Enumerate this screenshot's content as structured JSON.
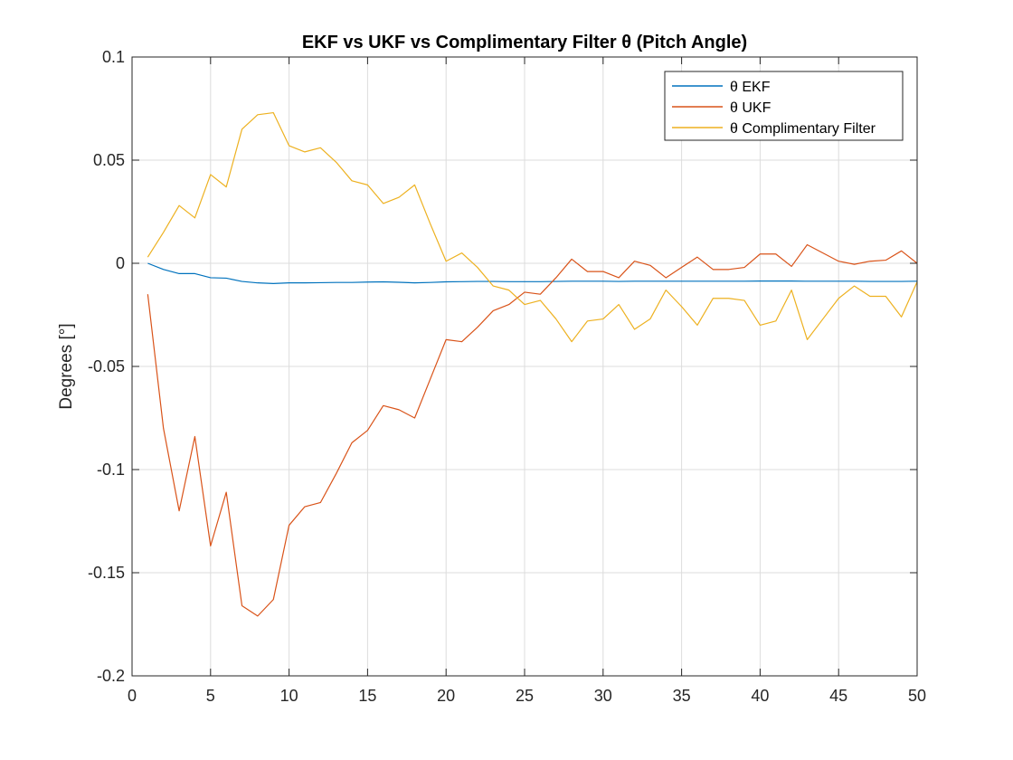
{
  "chart_data": {
    "type": "line",
    "title": "EKF vs UKF vs Complimentary Filter θ (Pitch Angle)",
    "xlabel": "",
    "ylabel": "Degrees [°]",
    "xlim": [
      0,
      50
    ],
    "ylim": [
      -0.2,
      0.1
    ],
    "x_ticks": [
      "0",
      "5",
      "10",
      "15",
      "20",
      "25",
      "30",
      "35",
      "40",
      "45",
      "50"
    ],
    "y_ticks": [
      "0.1",
      "0.05",
      "0",
      "-0.05",
      "-0.1",
      "-0.15",
      "-0.2"
    ],
    "grid": true,
    "legend_position": "top-right",
    "x": [
      1,
      2,
      3,
      4,
      5,
      6,
      7,
      8,
      9,
      10,
      11,
      12,
      13,
      14,
      15,
      16,
      17,
      18,
      19,
      20,
      21,
      22,
      23,
      24,
      25,
      26,
      27,
      28,
      29,
      30,
      31,
      32,
      33,
      34,
      35,
      36,
      37,
      38,
      39,
      40,
      41,
      42,
      43,
      44,
      45,
      46,
      47,
      48,
      49,
      50
    ],
    "series": [
      {
        "name": "θ EKF",
        "color": "#0072BD",
        "values": [
          0,
          -0.003,
          -0.005,
          -0.005,
          -0.007,
          -0.0072,
          -0.0088,
          -0.0095,
          -0.0098,
          -0.0095,
          -0.0095,
          -0.0094,
          -0.0093,
          -0.0093,
          -0.0091,
          -0.009,
          -0.0092,
          -0.0095,
          -0.0093,
          -0.009,
          -0.0089,
          -0.0088,
          -0.0088,
          -0.0089,
          -0.0089,
          -0.0089,
          -0.0088,
          -0.0087,
          -0.0087,
          -0.0087,
          -0.0088,
          -0.0087,
          -0.0087,
          -0.0087,
          -0.0087,
          -0.0087,
          -0.0087,
          -0.0087,
          -0.0087,
          -0.0086,
          -0.0086,
          -0.0086,
          -0.0087,
          -0.0087,
          -0.0087,
          -0.0087,
          -0.0088,
          -0.0088,
          -0.0088,
          -0.0087
        ]
      },
      {
        "name": "θ UKF",
        "color": "#D95319",
        "values": [
          -0.015,
          -0.08,
          -0.12,
          -0.084,
          -0.137,
          -0.111,
          -0.166,
          -0.171,
          -0.163,
          -0.127,
          -0.118,
          -0.116,
          -0.102,
          -0.087,
          -0.081,
          -0.069,
          -0.071,
          -0.075,
          -0.056,
          -0.037,
          -0.038,
          -0.031,
          -0.023,
          -0.02,
          -0.014,
          -0.015,
          -0.007,
          0.002,
          -0.004,
          -0.004,
          -0.007,
          0.001,
          -0.001,
          -0.007,
          -0.002,
          0.003,
          -0.003,
          -0.003,
          -0.002,
          0.0045,
          0.0045,
          -0.0015,
          0.009,
          0.005,
          0.001,
          -0.0005,
          0.001,
          0.0015,
          0.006,
          0.0
        ]
      },
      {
        "name": "θ Complimentary Filter",
        "color": "#EDB120",
        "values": [
          0.003,
          0.015,
          0.028,
          0.022,
          0.043,
          0.037,
          0.065,
          0.072,
          0.073,
          0.057,
          0.054,
          0.056,
          0.049,
          0.04,
          0.038,
          0.029,
          0.032,
          0.038,
          0.019,
          0.001,
          0.005,
          -0.002,
          -0.011,
          -0.013,
          -0.02,
          -0.018,
          -0.027,
          -0.038,
          -0.028,
          -0.027,
          -0.02,
          -0.032,
          -0.027,
          -0.013,
          -0.021,
          -0.03,
          -0.017,
          -0.017,
          -0.018,
          -0.03,
          -0.028,
          -0.013,
          -0.037,
          -0.027,
          -0.017,
          -0.011,
          -0.016,
          -0.016,
          -0.026,
          -0.009
        ]
      }
    ]
  }
}
